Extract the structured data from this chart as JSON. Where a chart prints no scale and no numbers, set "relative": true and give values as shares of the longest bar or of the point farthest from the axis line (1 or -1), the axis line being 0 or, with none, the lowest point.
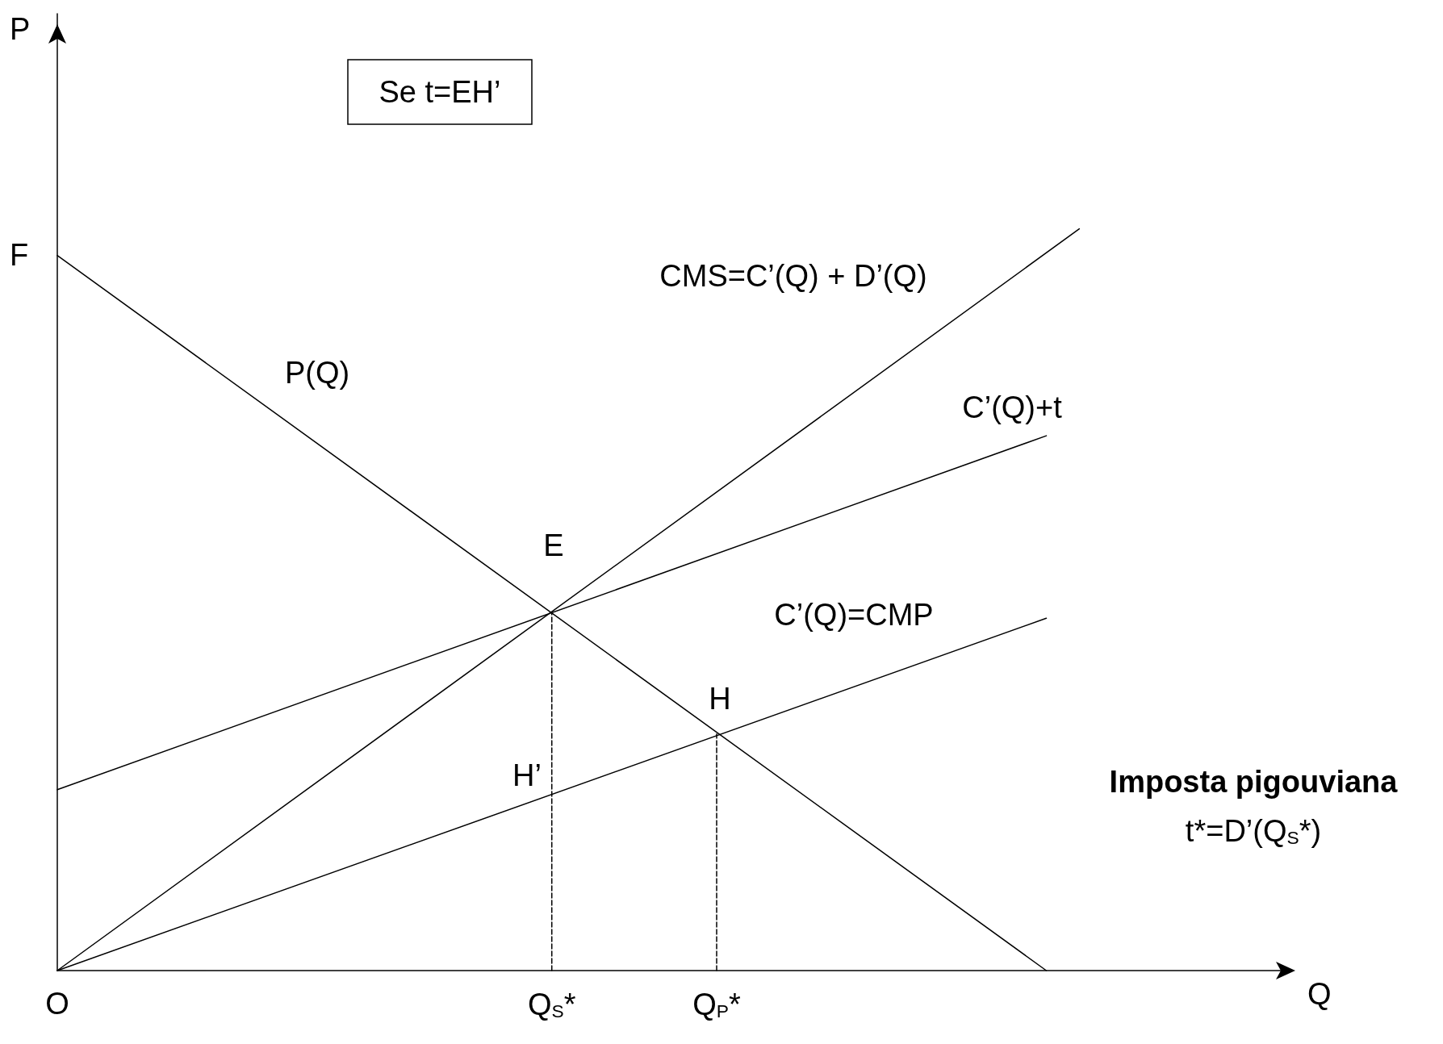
{
  "chart_data": {
    "type": "line",
    "relative": true,
    "xlabel": "Q",
    "categories": [
      "O",
      null,
      null,
      null,
      null,
      null,
      null,
      null,
      null,
      null,
      null,
      null,
      null,
      null,
      null,
      "Q$_{S}$*",
      null,
      null,
      null,
      null,
      "Q$_{P}$*",
      null,
      null,
      null,
      null,
      null,
      null,
      null,
      null,
      null,
      null,
      null,
      null,
      null,
      null,
      null,
      null,
      null
    ],
    "series": [
      {
        "color": "#000000",
        "values": [
          0.964,
          null,
          null,
          null,
          null,
          null,
          null,
          null,
          null,
          null,
          null,
          null,
          null,
          null,
          null,
          null,
          null,
          null,
          null,
          null,
          null,
          null,
          null,
          null,
          null,
          null,
          null,
          null,
          null,
          null,
          0,
          null,
          null,
          null,
          null,
          null,
          null,
          null
        ]
      },
      {
        "color": "#000000",
        "values": [
          0,
          null,
          null,
          null,
          null,
          null,
          null,
          null,
          null,
          null,
          null,
          null,
          null,
          null,
          null,
          null,
          null,
          null,
          null,
          null,
          null,
          null,
          null,
          null,
          null,
          null,
          null,
          null,
          null,
          null,
          null,
          1,
          null,
          null,
          null,
          null,
          null,
          null
        ]
      },
      {
        "color": "#000000",
        "values": [
          0.244,
          null,
          null,
          null,
          null,
          null,
          null,
          null,
          null,
          null,
          null,
          null,
          null,
          null,
          null,
          null,
          null,
          null,
          null,
          null,
          null,
          null,
          null,
          null,
          null,
          null,
          null,
          null,
          null,
          null,
          0.721,
          null,
          null,
          null,
          null,
          null,
          null,
          null
        ]
      },
      {
        "color": "#000000",
        "values": [
          0,
          null,
          null,
          null,
          null,
          null,
          null,
          null,
          null,
          null,
          null,
          null,
          null,
          null,
          null,
          null,
          null,
          null,
          null,
          null,
          null,
          null,
          null,
          null,
          null,
          null,
          null,
          null,
          null,
          null,
          0.475,
          null,
          null,
          null,
          null,
          null,
          null,
          null
        ]
      },
      {
        "color": "#000000",
        "x": [
          "Q$_{S}$*",
          "Q$_{S}$*"
        ],
        "values": [
          0,
          0.483
        ],
        "line_style": "dashed"
      },
      {
        "color": "#000000",
        "x": [
          "Q$_{P}$*",
          "Q$_{P}$*"
        ],
        "values": [
          0,
          0.319
        ],
        "line_style": "dashed"
      }
    ],
    "annotations": [
      "P",
      "F",
      "P(Q)",
      "CMS=C’(Q) + D’(Q)",
      "C’(Q)+t",
      "C’(Q)=CMP",
      "E",
      "H",
      "H’",
      "Se t=EH’",
      "Imposta pigouviana",
      "t*=D’(Q$_{S}$*)"
    ],
    "grid": false,
    "marker": "none",
    "line_style": "solid"
  }
}
